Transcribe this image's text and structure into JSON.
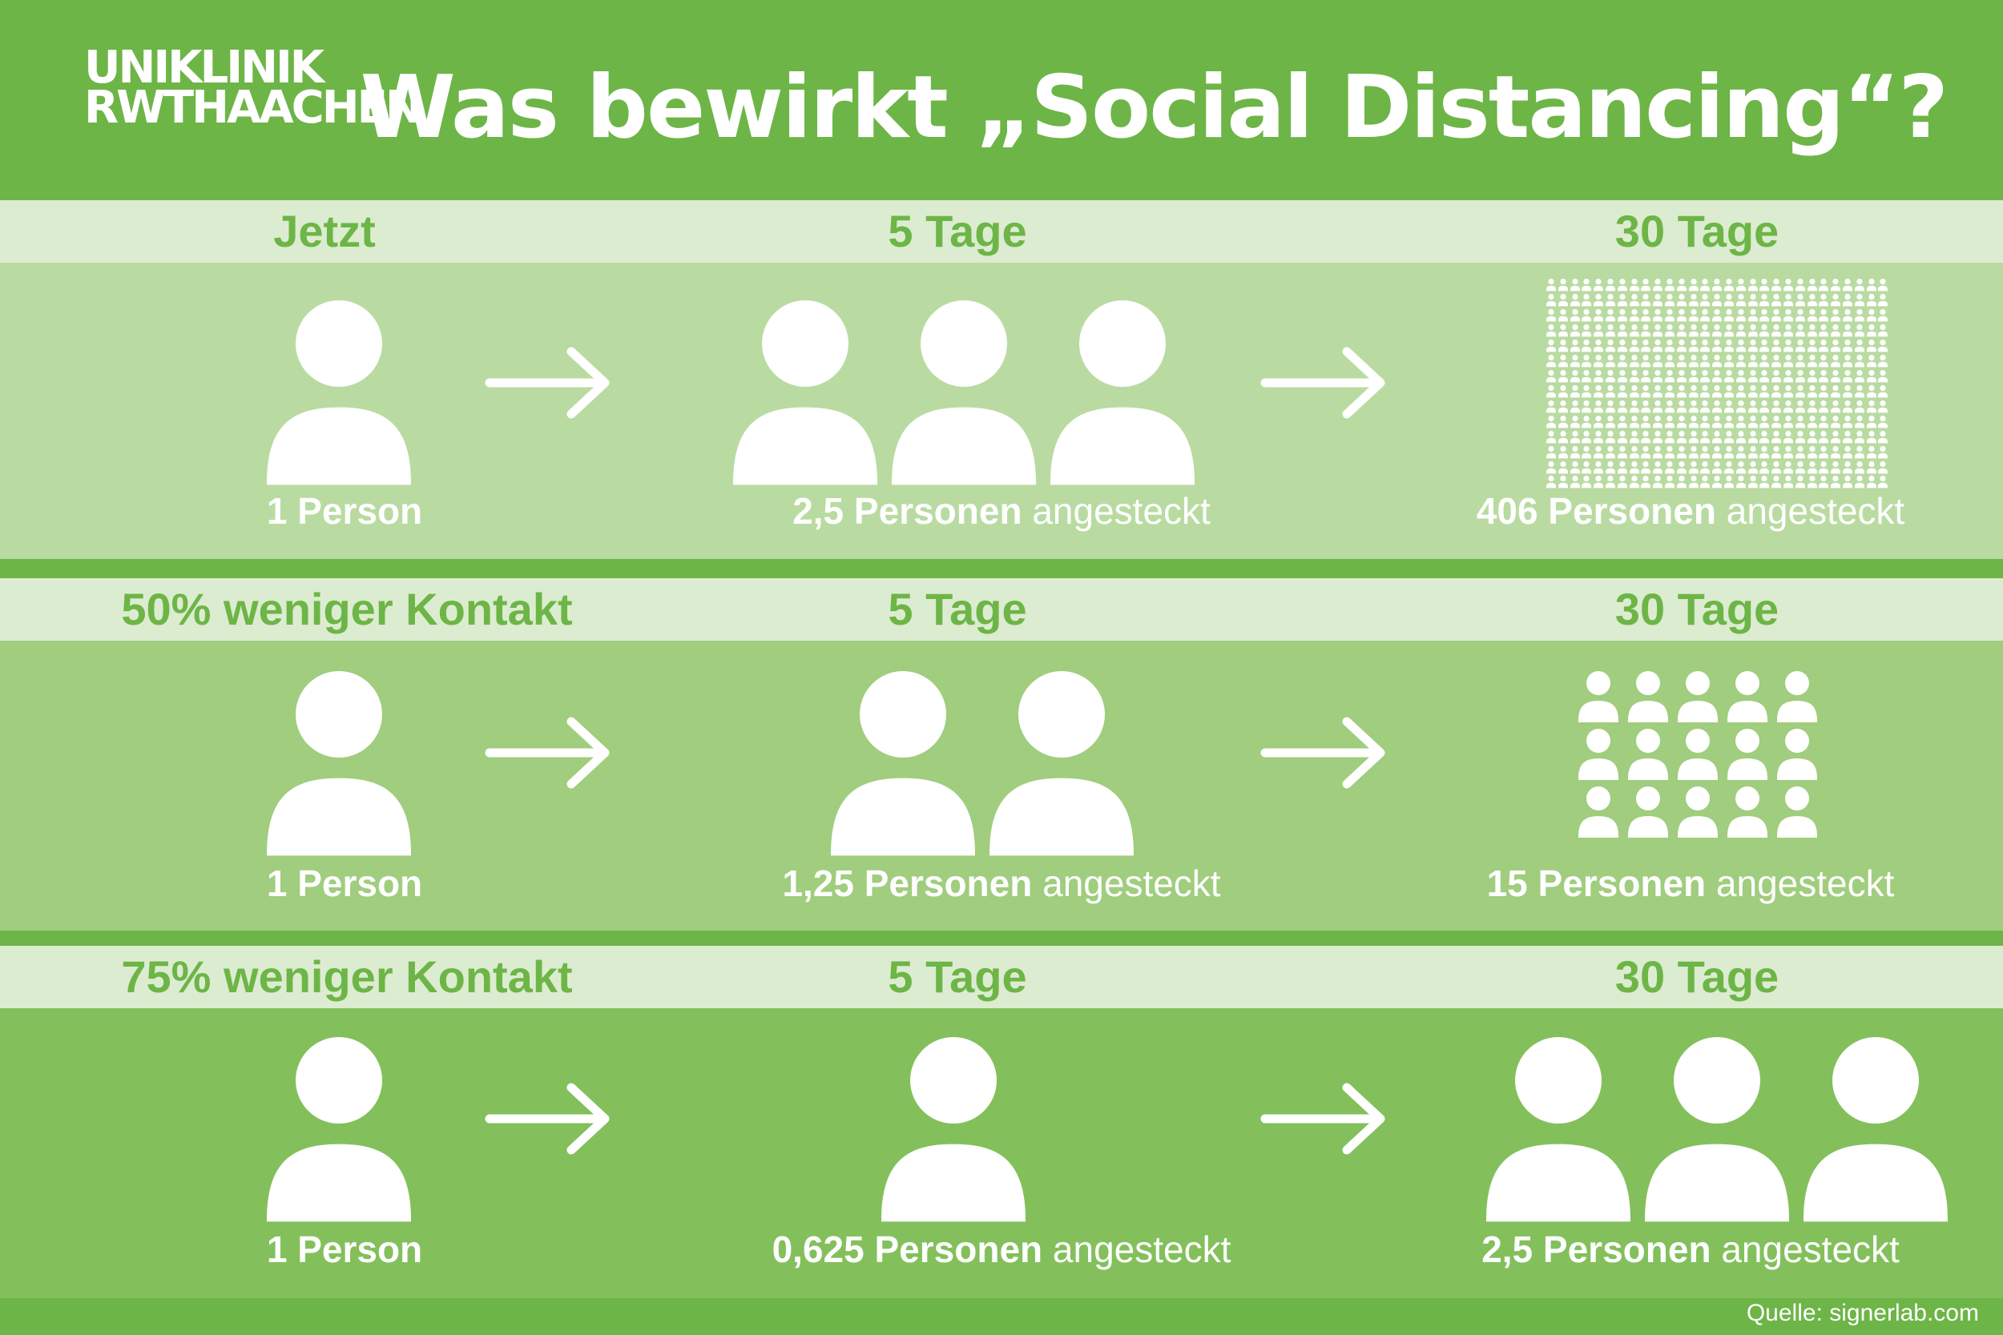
{
  "logo": {
    "line1": "UNIKLINIK",
    "line2": "RWTHAACHEN"
  },
  "title": "Was bewirkt „Social Distancing“?",
  "colors": {
    "header": "#6db547",
    "label_band": "#dcecd0",
    "row1_bg": "#b9dba2",
    "row2_bg": "#a0cd7e",
    "row3_bg": "#83c05c"
  },
  "rows": [
    {
      "labels": [
        "Jetzt",
        "5 Tage",
        "30 Tage"
      ],
      "captions": [
        {
          "bold": "1 Person",
          "rest": ""
        },
        {
          "bold": "2,5 Personen",
          "rest": " angesteckt"
        },
        {
          "bold": "406 Personen",
          "rest": " angesteckt"
        }
      ],
      "infected_5_days": 2.5,
      "infected_30_days": 406
    },
    {
      "labels": [
        "50% weniger Kontakt",
        "5 Tage",
        "30 Tage"
      ],
      "captions": [
        {
          "bold": "1 Person",
          "rest": ""
        },
        {
          "bold": "1,25 Personen",
          "rest": " angesteckt"
        },
        {
          "bold": "15 Personen",
          "rest": " angesteckt"
        }
      ],
      "infected_5_days": 1.25,
      "infected_30_days": 15
    },
    {
      "labels": [
        "75% weniger Kontakt",
        "5 Tage",
        "30 Tage"
      ],
      "captions": [
        {
          "bold": "1 Person",
          "rest": ""
        },
        {
          "bold": "0,625 Personen",
          "rest": " angesteckt"
        },
        {
          "bold": "2,5 Personen",
          "rest": " angesteckt"
        }
      ],
      "infected_5_days": 0.625,
      "infected_30_days": 2.5
    }
  ],
  "icons": {
    "person": "person-icon",
    "arrow": "arrow-right-icon"
  },
  "source": "Quelle: signerlab.com"
}
